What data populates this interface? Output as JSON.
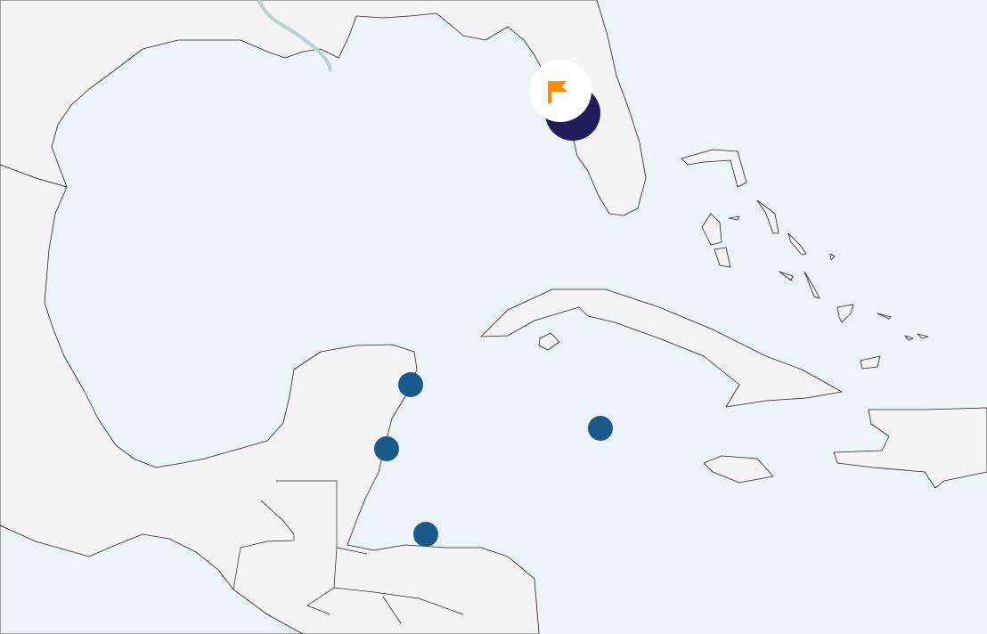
{
  "map": {
    "colors": {
      "land": "#f4f4f4",
      "water": "#ecf3f6",
      "coastline": "#222222",
      "river": "#b5d3d3",
      "marker": "#1a5a8a",
      "selected_marker": "#211d5a",
      "flag": "#ff8c00"
    },
    "markers": [
      {
        "name": "marker-1"
      },
      {
        "name": "marker-2"
      },
      {
        "name": "marker-3"
      },
      {
        "name": "marker-4"
      }
    ],
    "selected_marker": {
      "icon": "flag-icon"
    }
  }
}
